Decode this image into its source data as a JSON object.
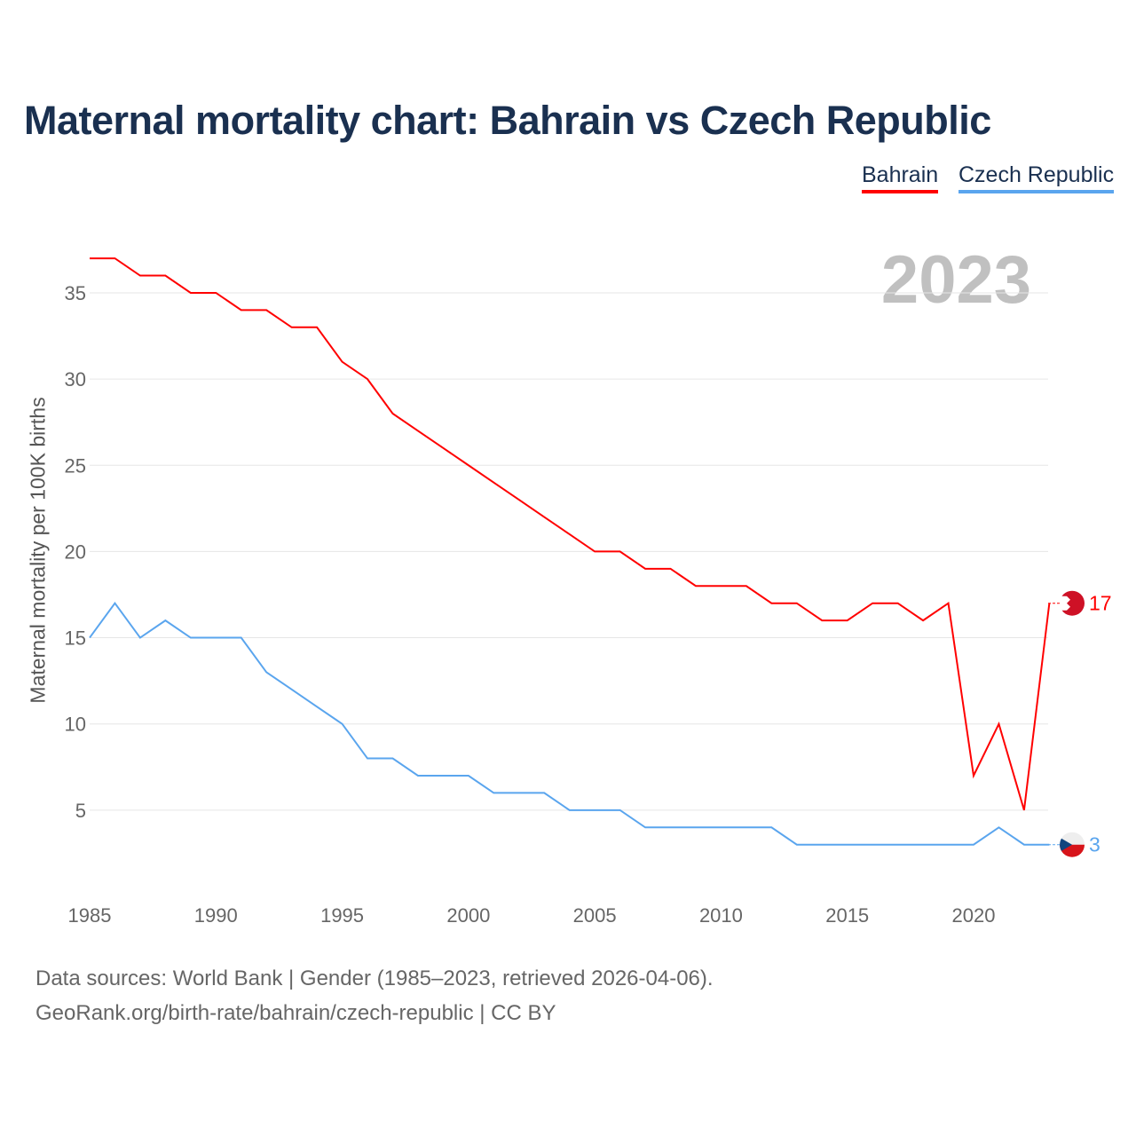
{
  "title": "Maternal mortality chart: Bahrain vs Czech Republic",
  "year_label": "2023",
  "source_line1": "Data sources: World Bank | Gender (1985–2023, retrieved 2026-04-06).",
  "source_line2": "GeoRank.org/birth-rate/bahrain/czech-republic | CC BY",
  "chart_data": {
    "type": "line",
    "title": "Maternal mortality chart: Bahrain vs Czech Republic",
    "xlabel": "",
    "ylabel": "Maternal mortality per 100K births",
    "xlim": [
      1985,
      2023
    ],
    "ylim": [
      0,
      37
    ],
    "xticks": [
      1985,
      1990,
      1995,
      2000,
      2005,
      2010,
      2015,
      2020
    ],
    "yticks": [
      5,
      10,
      15,
      20,
      25,
      30,
      35
    ],
    "grid": true,
    "legend_position": "top-right",
    "x": [
      1985,
      1986,
      1987,
      1988,
      1989,
      1990,
      1991,
      1992,
      1993,
      1994,
      1995,
      1996,
      1997,
      1998,
      1999,
      2000,
      2001,
      2002,
      2003,
      2004,
      2005,
      2006,
      2007,
      2008,
      2009,
      2010,
      2011,
      2012,
      2013,
      2014,
      2015,
      2016,
      2017,
      2018,
      2019,
      2020,
      2021,
      2022,
      2023
    ],
    "series": [
      {
        "name": "Bahrain",
        "color": "#ff0000",
        "end_label": "17",
        "values": [
          37,
          37,
          36,
          36,
          35,
          35,
          34,
          34,
          33,
          33,
          31,
          30,
          28,
          27,
          26,
          25,
          24,
          23,
          22,
          21,
          20,
          20,
          19,
          19,
          18,
          18,
          18,
          17,
          17,
          16,
          16,
          17,
          17,
          16,
          17,
          7,
          10,
          5,
          17
        ]
      },
      {
        "name": "Czech Republic",
        "color": "#5aa5ee",
        "end_label": "3",
        "values": [
          15,
          17,
          15,
          16,
          15,
          15,
          15,
          13,
          12,
          11,
          10,
          8,
          8,
          7,
          7,
          7,
          6,
          6,
          6,
          5,
          5,
          5,
          4,
          4,
          4,
          4,
          4,
          4,
          3,
          3,
          3,
          3,
          3,
          3,
          3,
          3,
          4,
          3,
          3
        ]
      }
    ]
  }
}
